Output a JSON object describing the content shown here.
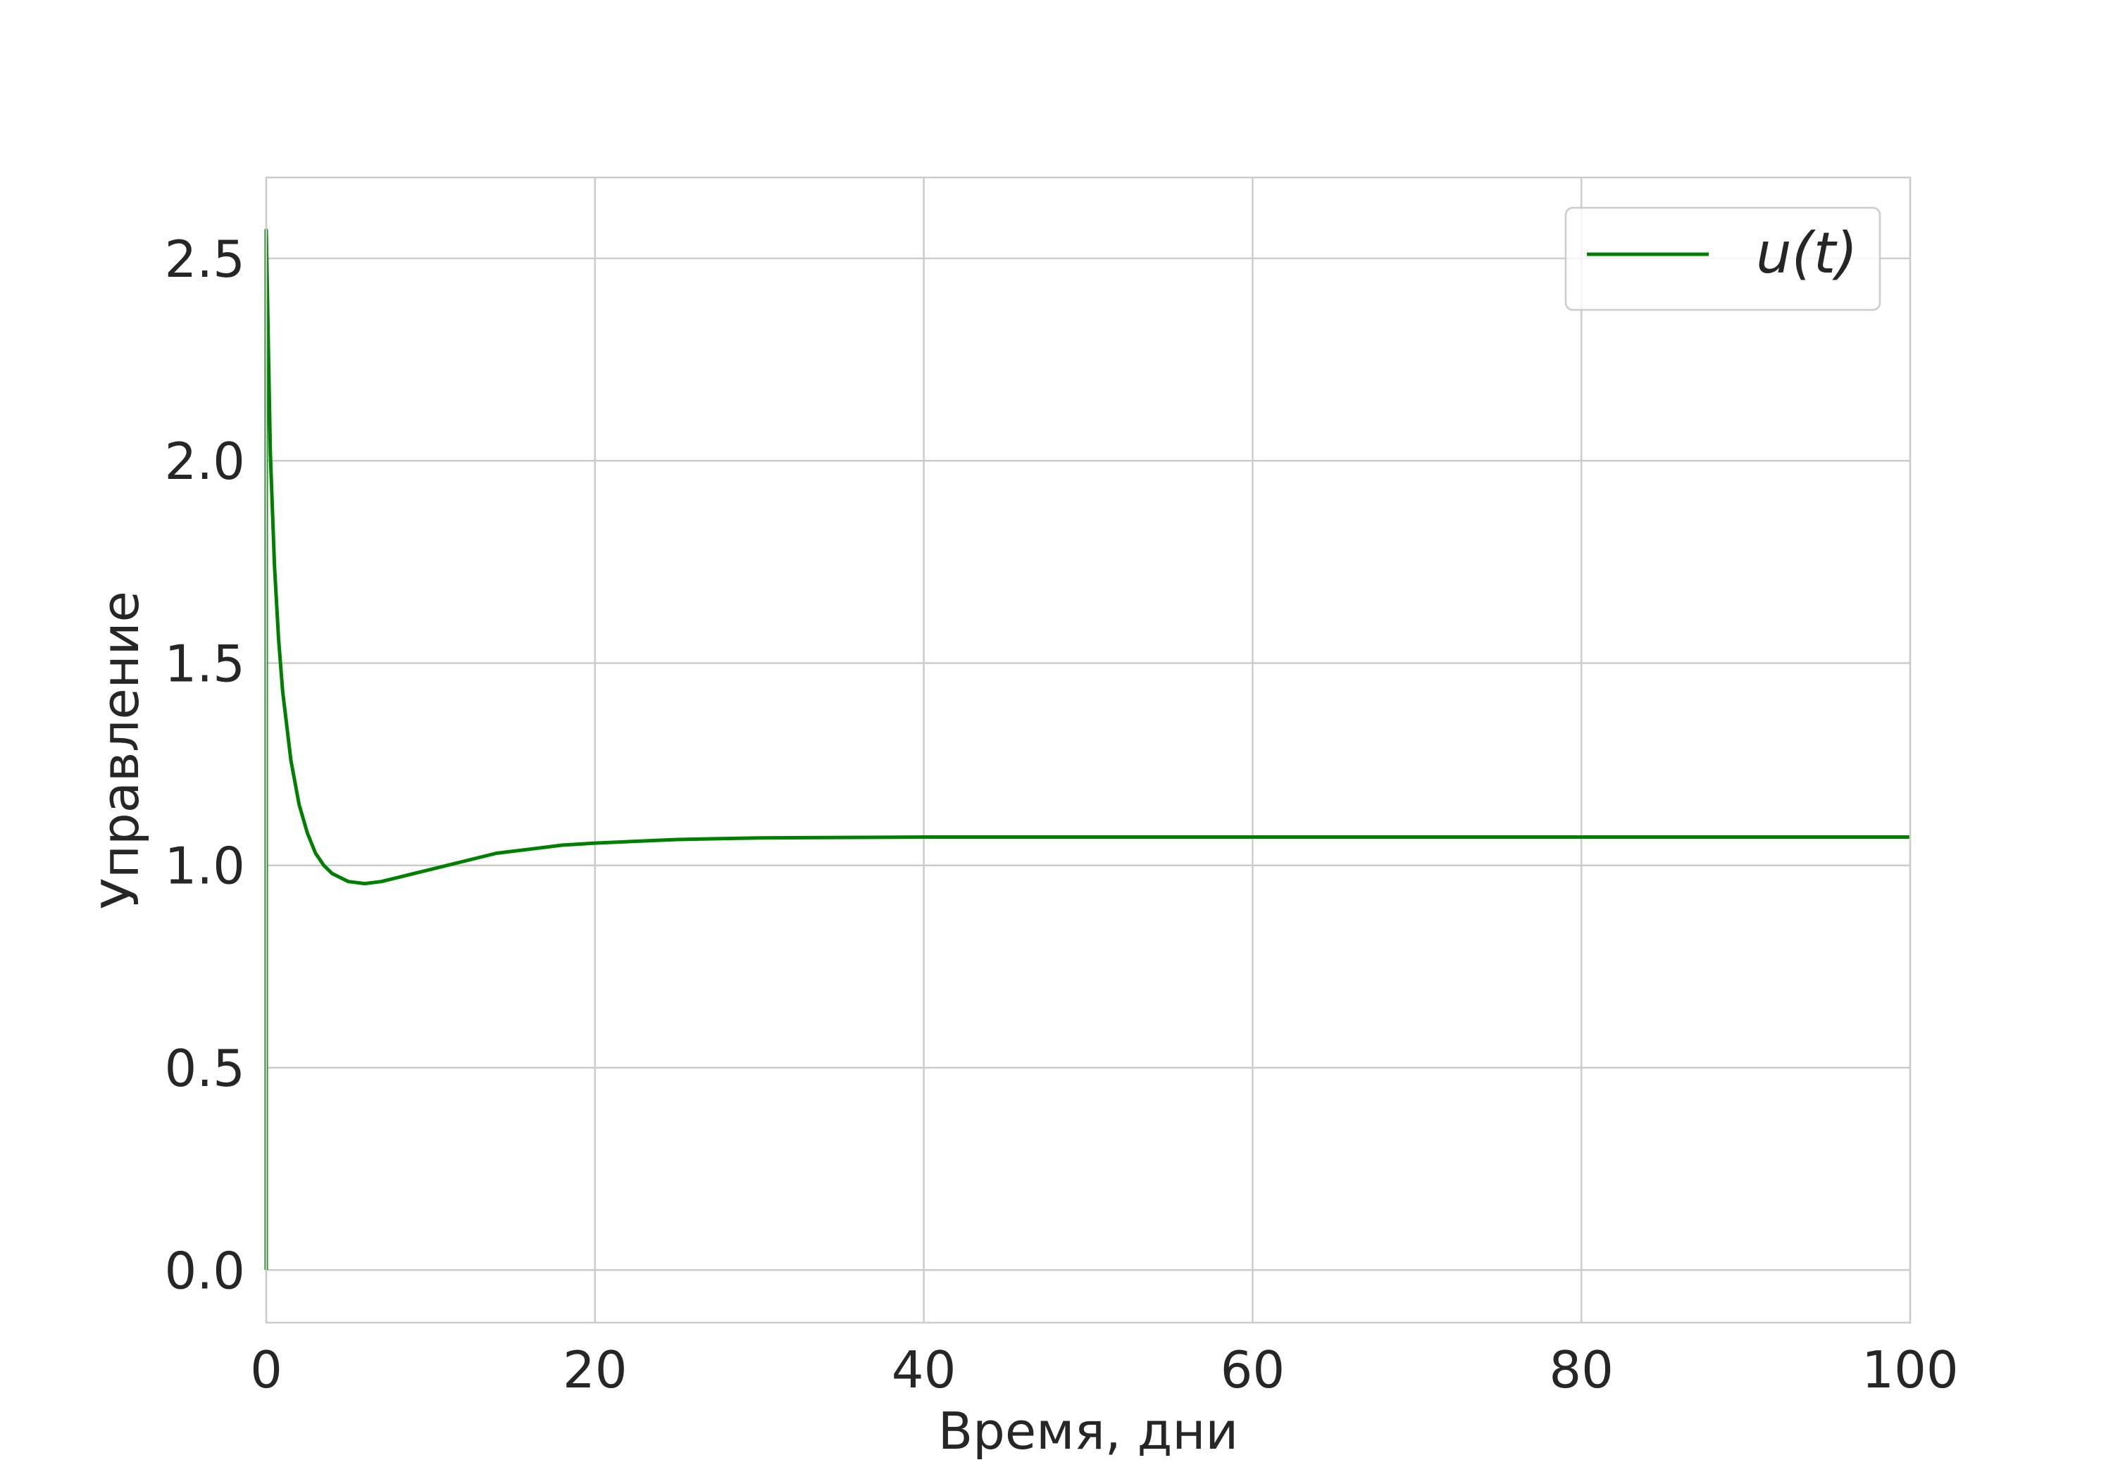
{
  "chart_data": {
    "type": "line",
    "title": "",
    "xlabel": "Время, дни",
    "ylabel": "Управление",
    "xlim": [
      0,
      100
    ],
    "ylim": [
      -0.13,
      2.7
    ],
    "x_ticks": [
      0,
      20,
      40,
      60,
      80,
      100
    ],
    "x_tick_labels": [
      "0",
      "20",
      "40",
      "60",
      "80",
      "100"
    ],
    "y_ticks": [
      0.0,
      0.5,
      1.0,
      1.5,
      2.0,
      2.5
    ],
    "y_tick_labels": [
      "0.0",
      "0.5",
      "1.0",
      "1.5",
      "2.0",
      "2.5"
    ],
    "grid": true,
    "legend": {
      "position": "top-right",
      "entries": [
        "u(t)"
      ]
    },
    "series": [
      {
        "name": "u(t)",
        "color": "#008000",
        "x": [
          0,
          0,
          0.25,
          0.5,
          0.75,
          1,
          1.5,
          2,
          2.5,
          3,
          3.5,
          4,
          5,
          6,
          7,
          8,
          9,
          10,
          12,
          14,
          16,
          18,
          20,
          25,
          30,
          40,
          50,
          60,
          70,
          80,
          90,
          100
        ],
        "y": [
          0.0,
          2.57,
          2.02,
          1.74,
          1.56,
          1.43,
          1.26,
          1.15,
          1.08,
          1.03,
          1.0,
          0.98,
          0.96,
          0.955,
          0.96,
          0.97,
          0.98,
          0.99,
          1.01,
          1.03,
          1.04,
          1.05,
          1.055,
          1.064,
          1.068,
          1.07,
          1.07,
          1.07,
          1.07,
          1.07,
          1.07,
          1.07
        ]
      }
    ]
  }
}
